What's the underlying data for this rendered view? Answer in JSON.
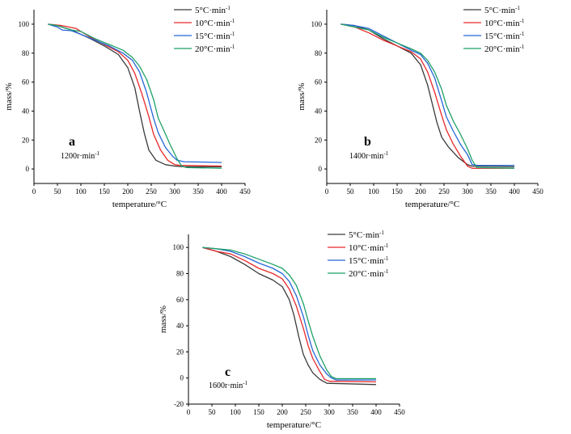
{
  "chart_data": [
    {
      "type": "line",
      "panel_label": "a",
      "speed_annotation": "1200r·min",
      "speed_exponent": "-1",
      "xlabel": "temperature/°C",
      "ylabel": "mass/%",
      "xlim": [
        0,
        450
      ],
      "ylim": [
        -10,
        110
      ],
      "xticks": [
        "0",
        "50",
        "100",
        "150",
        "200",
        "250",
        "300",
        "350",
        "400",
        "450"
      ],
      "yticks": [
        "0",
        "20",
        "40",
        "60",
        "80",
        "100"
      ],
      "legend_position": "top-right",
      "series": [
        {
          "name": "5°C·min",
          "exp": "-1",
          "color": "#3a3a3a",
          "points": [
            [
              30,
              100
            ],
            [
              50,
              99
            ],
            [
              80,
              96
            ],
            [
              120,
              90
            ],
            [
              150,
              85
            ],
            [
              180,
              79
            ],
            [
              200,
              70
            ],
            [
              215,
              56
            ],
            [
              225,
              40
            ],
            [
              235,
              25
            ],
            [
              245,
              13
            ],
            [
              260,
              6
            ],
            [
              280,
              3
            ],
            [
              300,
              2
            ],
            [
              320,
              1.5
            ],
            [
              400,
              1.5
            ]
          ]
        },
        {
          "name": "10°C·min",
          "exp": "-1",
          "color": "#e8282a",
          "points": [
            [
              30,
              100
            ],
            [
              60,
              99
            ],
            [
              90,
              97
            ],
            [
              120,
              91
            ],
            [
              150,
              86
            ],
            [
              180,
              81
            ],
            [
              200,
              75
            ],
            [
              215,
              66
            ],
            [
              230,
              52
            ],
            [
              245,
              36
            ],
            [
              255,
              24
            ],
            [
              270,
              13
            ],
            [
              285,
              6
            ],
            [
              300,
              3
            ],
            [
              310,
              2.5
            ],
            [
              400,
              2
            ]
          ]
        },
        {
          "name": "15°C·min",
          "exp": "-1",
          "color": "#2667d8",
          "points": [
            [
              30,
              100
            ],
            [
              50,
              98
            ],
            [
              60,
              96
            ],
            [
              80,
              95.5
            ],
            [
              100,
              93
            ],
            [
              130,
              89
            ],
            [
              160,
              85
            ],
            [
              190,
              80
            ],
            [
              210,
              75
            ],
            [
              225,
              67
            ],
            [
              240,
              53
            ],
            [
              255,
              35
            ],
            [
              265,
              25
            ],
            [
              280,
              15
            ],
            [
              295,
              9
            ],
            [
              305,
              6
            ],
            [
              320,
              5
            ],
            [
              400,
              4.5
            ]
          ]
        },
        {
          "name": "20°C·min",
          "exp": "-1",
          "color": "#1fa067",
          "points": [
            [
              30,
              100
            ],
            [
              50,
              99
            ],
            [
              80,
              96
            ],
            [
              100,
              95
            ],
            [
              130,
              90
            ],
            [
              160,
              86
            ],
            [
              190,
              82
            ],
            [
              210,
              77
            ],
            [
              225,
              71
            ],
            [
              240,
              62
            ],
            [
              255,
              48
            ],
            [
              265,
              35
            ],
            [
              275,
              28
            ],
            [
              290,
              17
            ],
            [
              305,
              7
            ],
            [
              315,
              2
            ],
            [
              325,
              1
            ],
            [
              400,
              0.5
            ]
          ]
        }
      ]
    },
    {
      "type": "line",
      "panel_label": "b",
      "speed_annotation": "1400r·min",
      "speed_exponent": "-1",
      "xlabel": "temperature/°C",
      "ylabel": "mass/%",
      "xlim": [
        0,
        450
      ],
      "ylim": [
        -10,
        110
      ],
      "xticks": [
        "0",
        "50",
        "100",
        "150",
        "200",
        "250",
        "300",
        "350",
        "400",
        "450"
      ],
      "yticks": [
        "0",
        "20",
        "40",
        "60",
        "80",
        "100"
      ],
      "legend_position": "top-right",
      "series": [
        {
          "name": "5°C·min",
          "exp": "-1",
          "color": "#3a3a3a",
          "points": [
            [
              30,
              100
            ],
            [
              60,
              99
            ],
            [
              90,
              96
            ],
            [
              120,
              90
            ],
            [
              150,
              85
            ],
            [
              180,
              80
            ],
            [
              200,
              72
            ],
            [
              215,
              58
            ],
            [
              225,
              45
            ],
            [
              235,
              32
            ],
            [
              245,
              22
            ],
            [
              260,
              15
            ],
            [
              280,
              8
            ],
            [
              300,
              3
            ],
            [
              310,
              2
            ],
            [
              400,
              1.5
            ]
          ]
        },
        {
          "name": "10°C·min",
          "exp": "-1",
          "color": "#e8282a",
          "points": [
            [
              30,
              100
            ],
            [
              60,
              98
            ],
            [
              90,
              94
            ],
            [
              120,
              89
            ],
            [
              150,
              85
            ],
            [
              180,
              81
            ],
            [
              200,
              76
            ],
            [
              215,
              67
            ],
            [
              230,
              53
            ],
            [
              245,
              37
            ],
            [
              255,
              27
            ],
            [
              270,
              17
            ],
            [
              285,
              9
            ],
            [
              300,
              2
            ],
            [
              310,
              0.5
            ],
            [
              400,
              0.5
            ]
          ]
        },
        {
          "name": "15°C·min",
          "exp": "-1",
          "color": "#2667d8",
          "points": [
            [
              30,
              100
            ],
            [
              60,
              99
            ],
            [
              90,
              97
            ],
            [
              120,
              92
            ],
            [
              150,
              87
            ],
            [
              180,
              82
            ],
            [
              200,
              79
            ],
            [
              215,
              73
            ],
            [
              230,
              63
            ],
            [
              245,
              47
            ],
            [
              255,
              36
            ],
            [
              270,
              26
            ],
            [
              285,
              17
            ],
            [
              300,
              10
            ],
            [
              310,
              3
            ],
            [
              320,
              2.5
            ],
            [
              400,
              2.5
            ]
          ]
        },
        {
          "name": "20°C·min",
          "exp": "-1",
          "color": "#1fa067",
          "points": [
            [
              30,
              100
            ],
            [
              60,
              98
            ],
            [
              90,
              96
            ],
            [
              120,
              91
            ],
            [
              150,
              87
            ],
            [
              180,
              83
            ],
            [
              200,
              80
            ],
            [
              215,
              75
            ],
            [
              230,
              67
            ],
            [
              245,
              55
            ],
            [
              255,
              44
            ],
            [
              270,
              33
            ],
            [
              285,
              24
            ],
            [
              300,
              14
            ],
            [
              310,
              6
            ],
            [
              320,
              1
            ],
            [
              400,
              0.5
            ]
          ]
        }
      ]
    },
    {
      "type": "line",
      "panel_label": "c",
      "speed_annotation": "1600r·min",
      "speed_exponent": "-1",
      "xlabel": "temperature/°C",
      "ylabel": "mass/%",
      "xlim": [
        0,
        450
      ],
      "ylim": [
        -20,
        110
      ],
      "xticks": [
        "0",
        "50",
        "100",
        "150",
        "200",
        "250",
        "300",
        "350",
        "400",
        "450"
      ],
      "yticks": [
        "-20",
        "0",
        "20",
        "40",
        "60",
        "80",
        "100"
      ],
      "legend_position": "top-right",
      "series": [
        {
          "name": "5°C·min",
          "exp": "-1",
          "color": "#3a3a3a",
          "points": [
            [
              30,
              100
            ],
            [
              60,
              97
            ],
            [
              90,
              93
            ],
            [
              120,
              87
            ],
            [
              150,
              80
            ],
            [
              180,
              75
            ],
            [
              200,
              70
            ],
            [
              215,
              60
            ],
            [
              225,
              48
            ],
            [
              235,
              32
            ],
            [
              245,
              18
            ],
            [
              255,
              10
            ],
            [
              265,
              4
            ],
            [
              280,
              -1
            ],
            [
              295,
              -4
            ],
            [
              400,
              -5
            ]
          ]
        },
        {
          "name": "10°C·min",
          "exp": "-1",
          "color": "#e8282a",
          "points": [
            [
              30,
              100
            ],
            [
              60,
              97
            ],
            [
              90,
              95
            ],
            [
              120,
              90
            ],
            [
              150,
              84
            ],
            [
              180,
              80
            ],
            [
              200,
              76
            ],
            [
              215,
              68
            ],
            [
              230,
              55
            ],
            [
              245,
              38
            ],
            [
              255,
              25
            ],
            [
              265,
              15
            ],
            [
              280,
              5
            ],
            [
              290,
              -1
            ],
            [
              300,
              -2.5
            ],
            [
              400,
              -3
            ]
          ]
        },
        {
          "name": "15°C·min",
          "exp": "-1",
          "color": "#2667d8",
          "points": [
            [
              30,
              100
            ],
            [
              60,
              99
            ],
            [
              90,
              97
            ],
            [
              120,
              93
            ],
            [
              150,
              88
            ],
            [
              180,
              84
            ],
            [
              200,
              80
            ],
            [
              215,
              74
            ],
            [
              230,
              63
            ],
            [
              245,
              47
            ],
            [
              255,
              33
            ],
            [
              265,
              21
            ],
            [
              280,
              10
            ],
            [
              295,
              3
            ],
            [
              305,
              0
            ],
            [
              315,
              -1.5
            ],
            [
              400,
              -1.5
            ]
          ]
        },
        {
          "name": "20°C·min",
          "exp": "-1",
          "color": "#1fa067",
          "points": [
            [
              30,
              100
            ],
            [
              60,
              99
            ],
            [
              90,
              98
            ],
            [
              120,
              95
            ],
            [
              150,
              91
            ],
            [
              180,
              87
            ],
            [
              200,
              84
            ],
            [
              215,
              79
            ],
            [
              230,
              71
            ],
            [
              245,
              57
            ],
            [
              255,
              44
            ],
            [
              265,
              32
            ],
            [
              280,
              17
            ],
            [
              295,
              6
            ],
            [
              305,
              1
            ],
            [
              315,
              -0.5
            ],
            [
              400,
              -0.5
            ]
          ]
        }
      ]
    }
  ]
}
